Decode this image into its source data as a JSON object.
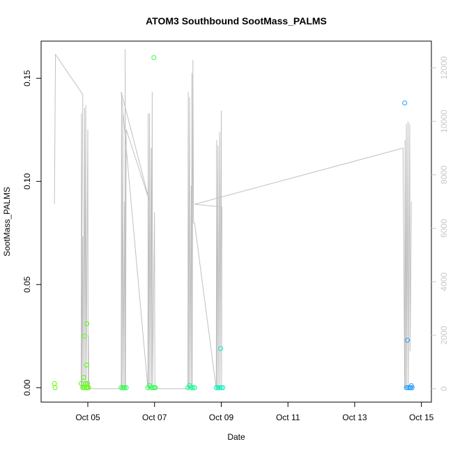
{
  "chart_data": {
    "type": "scatter",
    "title": "ATOM3 Southbound SootMass_PALMS",
    "xlabel": "Date",
    "ylabel": "SootMass_PALMS",
    "x_ticks": [
      "Oct 05",
      "Oct 07",
      "Oct 09",
      "Oct 11",
      "Oct 13",
      "Oct 15"
    ],
    "y_ticks": [
      "0.00",
      "0.05",
      "0.10",
      "0.15"
    ],
    "y2_ticks": [
      "0",
      "2000",
      "4000",
      "6000",
      "8000",
      "10000",
      "12000"
    ],
    "xlim": [
      3.6,
      15.3
    ],
    "ylim": [
      -0.007,
      0.168
    ],
    "y2lim": [
      -500,
      13000
    ],
    "point_series": [
      {
        "color": "#55ff00",
        "points": [
          [
            4.0,
            0.002
          ],
          [
            4.02,
            0.0
          ],
          [
            4.8,
            0.002
          ],
          [
            4.85,
            0.0
          ],
          [
            4.88,
            0.005
          ],
          [
            4.9,
            0.025
          ],
          [
            4.93,
            0.002
          ],
          [
            4.96,
            0.011
          ],
          [
            4.97,
            0.031
          ],
          [
            4.99,
            0.002
          ],
          [
            5.0,
            0.0
          ],
          [
            5.02,
            0.0
          ],
          [
            4.9,
            0.0
          ],
          [
            4.95,
            0.0
          ]
        ]
      },
      {
        "color": "#22ff44",
        "points": [
          [
            6.0,
            0.0
          ],
          [
            6.05,
            0.0
          ],
          [
            6.1,
            0.0
          ],
          [
            6.15,
            0.0
          ],
          [
            6.8,
            0.0
          ],
          [
            6.85,
            0.001
          ],
          [
            6.9,
            0.0
          ],
          [
            6.95,
            0.0
          ],
          [
            6.98,
            0.16
          ],
          [
            7.0,
            0.0
          ],
          [
            7.02,
            0.0
          ]
        ]
      },
      {
        "color": "#00ff88",
        "points": [
          [
            8.0,
            0.0
          ],
          [
            8.05,
            0.001
          ],
          [
            8.1,
            0.0
          ],
          [
            8.15,
            0.0
          ],
          [
            8.2,
            0.0
          ]
        ]
      },
      {
        "color": "#00eebb",
        "points": [
          [
            8.85,
            0.0
          ],
          [
            8.9,
            0.0
          ],
          [
            8.95,
            0.0
          ],
          [
            8.98,
            0.019
          ],
          [
            9.0,
            0.0
          ],
          [
            9.05,
            0.0
          ]
        ]
      },
      {
        "color": "#1e9bff",
        "points": [
          [
            14.5,
            0.138
          ],
          [
            14.55,
            0.0
          ],
          [
            14.58,
            0.023
          ],
          [
            14.6,
            0.0
          ],
          [
            14.65,
            0.0
          ],
          [
            14.68,
            0.0
          ],
          [
            14.7,
            0.001
          ],
          [
            14.72,
            0.0
          ]
        ]
      }
    ],
    "line_series": {
      "axis": "right",
      "color": "#c0c0c0",
      "points": [
        [
          4.0,
          6900
        ],
        [
          4.03,
          12500
        ],
        [
          4.85,
          11000
        ],
        [
          4.8,
          0
        ],
        [
          4.81,
          10300
        ],
        [
          4.82,
          0
        ],
        [
          4.85,
          5700
        ],
        [
          4.86,
          0
        ],
        [
          4.9,
          10500
        ],
        [
          4.91,
          0
        ],
        [
          4.94,
          10600
        ],
        [
          4.95,
          0
        ],
        [
          5.0,
          9700
        ],
        [
          5.01,
          0
        ],
        [
          5.02,
          2000
        ],
        [
          5.03,
          0
        ],
        [
          6.0,
          0
        ],
        [
          6.01,
          11100
        ],
        [
          6.02,
          0
        ],
        [
          6.05,
          10300
        ],
        [
          6.06,
          0
        ],
        [
          6.1,
          7000
        ],
        [
          6.11,
          0
        ],
        [
          6.12,
          12700
        ],
        [
          6.13,
          0
        ],
        [
          6.15,
          9700
        ],
        [
          6.85,
          7000
        ],
        [
          6.0,
          11100
        ],
        [
          6.8,
          0
        ],
        [
          6.81,
          10300
        ],
        [
          6.82,
          0
        ],
        [
          6.85,
          10300
        ],
        [
          6.86,
          0
        ],
        [
          6.9,
          9000
        ],
        [
          6.91,
          0
        ],
        [
          6.93,
          11100
        ],
        [
          6.94,
          0
        ],
        [
          7.0,
          6600
        ],
        [
          7.01,
          0
        ],
        [
          8.0,
          0
        ],
        [
          8.01,
          11100
        ],
        [
          8.02,
          0
        ],
        [
          8.05,
          10900
        ],
        [
          8.06,
          0
        ],
        [
          8.1,
          7600
        ],
        [
          8.11,
          0
        ],
        [
          8.12,
          11800
        ],
        [
          8.13,
          0
        ],
        [
          8.15,
          12300
        ],
        [
          8.17,
          6200
        ],
        [
          8.2,
          6200
        ],
        [
          8.85,
          0
        ],
        [
          8.86,
          9300
        ],
        [
          8.87,
          0
        ],
        [
          8.9,
          9100
        ],
        [
          8.91,
          0
        ],
        [
          8.95,
          9600
        ],
        [
          8.96,
          0
        ],
        [
          9.0,
          10400
        ],
        [
          9.01,
          0
        ],
        [
          9.02,
          6800
        ],
        [
          8.2,
          6900
        ],
        [
          14.45,
          9000
        ],
        [
          14.5,
          0
        ],
        [
          14.51,
          9300
        ],
        [
          14.52,
          0
        ],
        [
          14.55,
          9900
        ],
        [
          14.56,
          0
        ],
        [
          14.6,
          10000
        ],
        [
          14.61,
          0
        ],
        [
          14.65,
          9900
        ],
        [
          14.66,
          1400
        ],
        [
          14.7,
          7000
        ]
      ]
    }
  }
}
